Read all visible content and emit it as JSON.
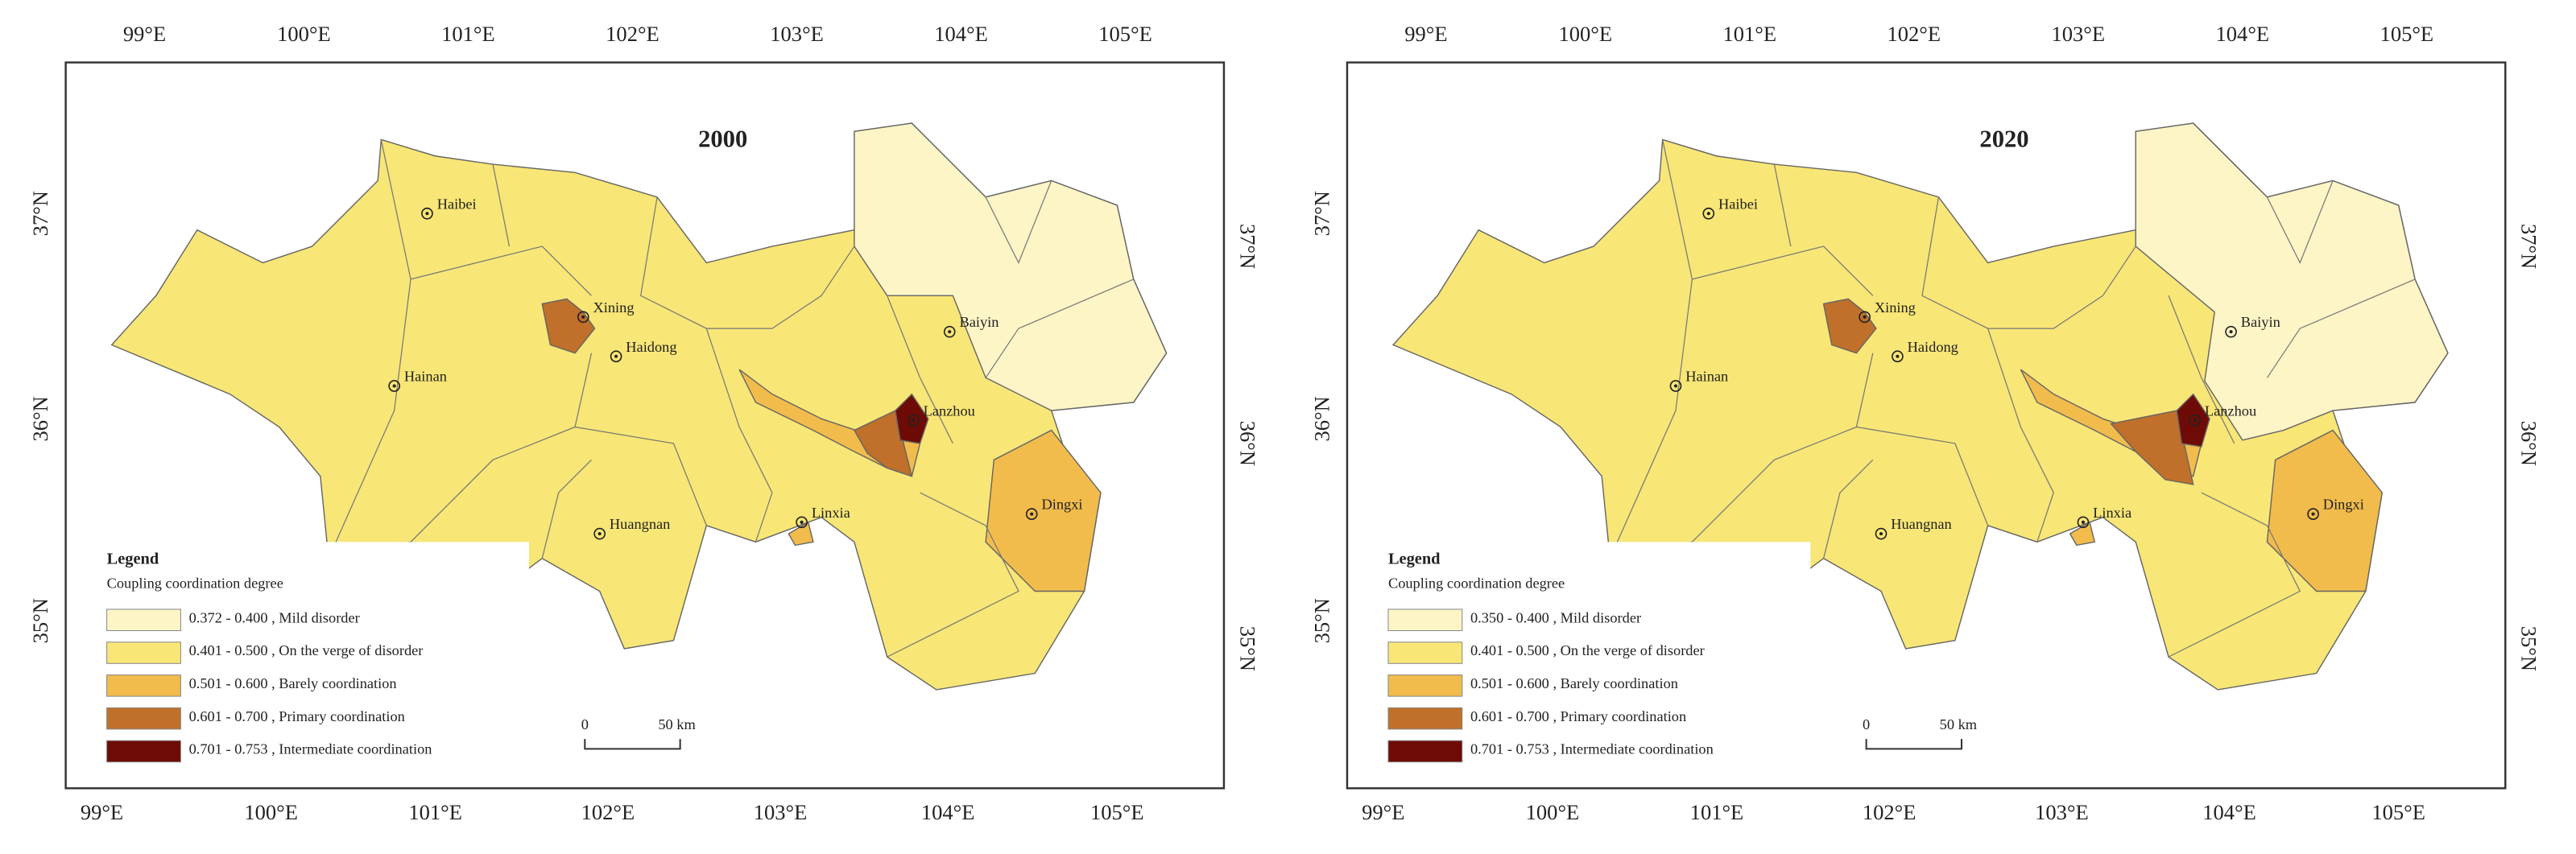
{
  "panels": [
    {
      "title": "2000",
      "lon_top": [
        "99°E",
        "100°E",
        "101°E",
        "102°E",
        "103°E",
        "104°E",
        "105°E"
      ],
      "lon_bottom": [
        "99°E",
        "100°E",
        "101°E",
        "102°E",
        "103°E",
        "104°E",
        "105°E"
      ],
      "lat_left": [
        "37°N",
        "36°N",
        "35°N"
      ],
      "lat_right": [
        "37°N",
        "36°N",
        "35°N"
      ],
      "cities": [
        "Haibei",
        "Xining",
        "Haidong",
        "Hainan",
        "Baiyin",
        "Lanzhou",
        "Huangnan",
        "Linxia",
        "Dingxi"
      ],
      "legend": {
        "title": "Legend",
        "subtitle": "Coupling coordination degree",
        "items": [
          {
            "text": "0.372 - 0.400 , Mild disorder",
            "color": "#fdf5c6"
          },
          {
            "text": "0.401 - 0.500 , On the verge of disorder",
            "color": "#f8e676"
          },
          {
            "text": "0.501 - 0.600 , Barely coordination",
            "color": "#f1bc4c"
          },
          {
            "text": "0.601 - 0.700 , Primary coordination",
            "color": "#c0702a"
          },
          {
            "text": "0.701 - 0.753 , Intermediate coordination",
            "color": "#6e0b06"
          }
        ]
      },
      "scalebar": {
        "zero": "0",
        "dist": "50 km"
      }
    },
    {
      "title": "2020",
      "lon_top": [
        "99°E",
        "100°E",
        "101°E",
        "102°E",
        "103°E",
        "104°E",
        "105°E"
      ],
      "lon_bottom": [
        "99°E",
        "100°E",
        "101°E",
        "102°E",
        "103°E",
        "104°E",
        "105°E"
      ],
      "lat_left": [
        "37°N",
        "36°N",
        "35°N"
      ],
      "lat_right": [
        "37°N",
        "36°N",
        "35°N"
      ],
      "cities": [
        "Haibei",
        "Xining",
        "Haidong",
        "Hainan",
        "Baiyin",
        "Lanzhou",
        "Huangnan",
        "Linxia",
        "Dingxi"
      ],
      "legend": {
        "title": "Legend",
        "subtitle": "Coupling coordination degree",
        "items": [
          {
            "text": "0.350 - 0.400 , Mild disorder",
            "color": "#fdf5c6"
          },
          {
            "text": "0.401 - 0.500 , On the verge of disorder",
            "color": "#f8e676"
          },
          {
            "text": "0.501 - 0.600 , Barely coordination",
            "color": "#f1bc4c"
          },
          {
            "text": "0.601 - 0.700 , Primary coordination",
            "color": "#c0702a"
          },
          {
            "text": "0.701 - 0.753 , Intermediate coordination",
            "color": "#6e0b06"
          }
        ]
      },
      "scalebar": {
        "zero": "0",
        "dist": "50 km"
      }
    }
  ]
}
